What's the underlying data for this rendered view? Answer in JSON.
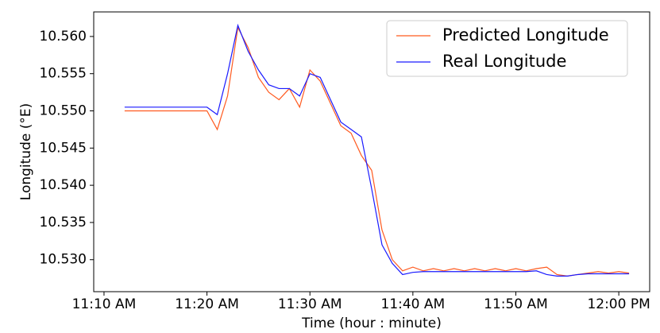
{
  "chart_data": {
    "type": "line",
    "x_label": "Time (hour : minute)",
    "y_label": "Longitude (°E)",
    "x": [
      "11:12",
      "11:13",
      "11:14",
      "11:15",
      "11:16",
      "11:17",
      "11:18",
      "11:19",
      "11:20",
      "11:21",
      "11:22",
      "11:23",
      "11:24",
      "11:25",
      "11:26",
      "11:27",
      "11:28",
      "11:29",
      "11:30",
      "11:31",
      "11:32",
      "11:33",
      "11:34",
      "11:35",
      "11:36",
      "11:37",
      "11:38",
      "11:39",
      "11:40",
      "11:41",
      "11:42",
      "11:43",
      "11:44",
      "11:45",
      "11:46",
      "11:47",
      "11:48",
      "11:49",
      "11:50",
      "11:51",
      "11:52",
      "11:53",
      "11:54",
      "11:55",
      "11:56",
      "11:57",
      "11:58",
      "11:59",
      "12:00",
      "12:01"
    ],
    "series": [
      {
        "name": "Predicted Longitude",
        "color": "#ff5a1f",
        "values": [
          10.55,
          10.55,
          10.55,
          10.55,
          10.55,
          10.55,
          10.55,
          10.55,
          10.55,
          10.5475,
          10.552,
          10.5612,
          10.5585,
          10.5545,
          10.5525,
          10.5515,
          10.553,
          10.5505,
          10.5555,
          10.554,
          10.551,
          10.548,
          10.547,
          10.544,
          10.542,
          10.534,
          10.53,
          10.5285,
          10.529,
          10.5285,
          10.5288,
          10.5285,
          10.5288,
          10.5285,
          10.5288,
          10.5285,
          10.5288,
          10.5285,
          10.5288,
          10.5285,
          10.5288,
          10.529,
          10.528,
          10.5278,
          10.528,
          10.5282,
          10.5284,
          10.5282,
          10.5284,
          10.5282
        ]
      },
      {
        "name": "Real Longitude",
        "color": "#1a1aff",
        "values": [
          10.5505,
          10.5505,
          10.5505,
          10.5505,
          10.5505,
          10.5505,
          10.5505,
          10.5505,
          10.5505,
          10.5495,
          10.555,
          10.5615,
          10.558,
          10.5555,
          10.5535,
          10.553,
          10.553,
          10.552,
          10.555,
          10.5545,
          10.5515,
          10.5485,
          10.5475,
          10.5465,
          10.5395,
          10.532,
          10.5295,
          10.528,
          10.5283,
          10.5284,
          10.5284,
          10.5284,
          10.5284,
          10.5284,
          10.5284,
          10.5284,
          10.5284,
          10.5284,
          10.5284,
          10.5284,
          10.5285,
          10.528,
          10.5278,
          10.5278,
          10.528,
          10.5281,
          10.5281,
          10.5281,
          10.5281,
          10.5281
        ]
      }
    ],
    "xlim": [
      "11:09",
      "12:03"
    ],
    "xticks": [
      {
        "value": "11:10",
        "label": "11:10 AM"
      },
      {
        "value": "11:20",
        "label": "11:20 AM"
      },
      {
        "value": "11:30",
        "label": "11:30 AM"
      },
      {
        "value": "11:40",
        "label": "11:40 AM"
      },
      {
        "value": "11:50",
        "label": "11:50 AM"
      },
      {
        "value": "12:00",
        "label": "12:00 PM"
      }
    ],
    "ylim": [
      10.5257,
      10.5633
    ],
    "yticks": [
      {
        "value": 10.53,
        "label": "10.530"
      },
      {
        "value": 10.535,
        "label": "10.535"
      },
      {
        "value": 10.54,
        "label": "10.540"
      },
      {
        "value": 10.545,
        "label": "10.545"
      },
      {
        "value": 10.55,
        "label": "10.550"
      },
      {
        "value": 10.555,
        "label": "10.555"
      },
      {
        "value": 10.56,
        "label": "10.560"
      }
    ],
    "legend": "upper right"
  }
}
